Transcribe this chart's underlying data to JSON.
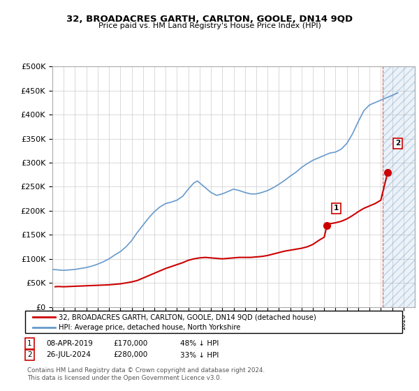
{
  "title": "32, BROADACRES GARTH, CARLTON, GOOLE, DN14 9QD",
  "subtitle": "Price paid vs. HM Land Registry's House Price Index (HPI)",
  "ylabel_ticks": [
    "£0",
    "£50K",
    "£100K",
    "£150K",
    "£200K",
    "£250K",
    "£300K",
    "£350K",
    "£400K",
    "£450K",
    "£500K"
  ],
  "ytick_values": [
    0,
    50000,
    100000,
    150000,
    200000,
    250000,
    300000,
    350000,
    400000,
    450000,
    500000
  ],
  "hpi_color": "#6699cc",
  "price_color": "#cc0000",
  "background_color": "#ffffff",
  "grid_color": "#cccccc",
  "sale1": {
    "date": "08-APR-2019",
    "price": 170000,
    "label": "1",
    "pct": "48% ↓ HPI"
  },
  "sale2": {
    "date": "26-JUL-2024",
    "price": 280000,
    "label": "2",
    "pct": "33% ↓ HPI"
  },
  "legend_line1": "32, BROADACRES GARTH, CARLTON, GOOLE, DN14 9QD (detached house)",
  "legend_line2": "HPI: Average price, detached house, North Yorkshire",
  "footer": "Contains HM Land Registry data © Crown copyright and database right 2024.\nThis data is licensed under the Open Government Licence v3.0.",
  "hpi_data": [
    [
      1995,
      78000
    ],
    [
      1995.5,
      77000
    ],
    [
      1996,
      76000
    ],
    [
      1996.5,
      77000
    ],
    [
      1997,
      78000
    ],
    [
      1997.5,
      80000
    ],
    [
      1998,
      82000
    ],
    [
      1998.5,
      85000
    ],
    [
      1999,
      89000
    ],
    [
      1999.5,
      94000
    ],
    [
      2000,
      100000
    ],
    [
      2000.5,
      108000
    ],
    [
      2001,
      115000
    ],
    [
      2001.5,
      125000
    ],
    [
      2002,
      138000
    ],
    [
      2002.5,
      155000
    ],
    [
      2003,
      170000
    ],
    [
      2003.5,
      185000
    ],
    [
      2004,
      198000
    ],
    [
      2004.5,
      208000
    ],
    [
      2005,
      215000
    ],
    [
      2005.5,
      218000
    ],
    [
      2006,
      222000
    ],
    [
      2006.5,
      230000
    ],
    [
      2007,
      245000
    ],
    [
      2007.5,
      258000
    ],
    [
      2007.8,
      262000
    ],
    [
      2008,
      258000
    ],
    [
      2008.5,
      248000
    ],
    [
      2009,
      238000
    ],
    [
      2009.5,
      232000
    ],
    [
      2010,
      235000
    ],
    [
      2010.5,
      240000
    ],
    [
      2011,
      245000
    ],
    [
      2011.5,
      242000
    ],
    [
      2012,
      238000
    ],
    [
      2012.5,
      235000
    ],
    [
      2013,
      235000
    ],
    [
      2013.5,
      238000
    ],
    [
      2014,
      242000
    ],
    [
      2014.5,
      248000
    ],
    [
      2015,
      255000
    ],
    [
      2015.5,
      263000
    ],
    [
      2016,
      272000
    ],
    [
      2016.5,
      280000
    ],
    [
      2017,
      290000
    ],
    [
      2017.5,
      298000
    ],
    [
      2018,
      305000
    ],
    [
      2018.5,
      310000
    ],
    [
      2019,
      315000
    ],
    [
      2019.5,
      320000
    ],
    [
      2020,
      322000
    ],
    [
      2020.5,
      328000
    ],
    [
      2021,
      340000
    ],
    [
      2021.5,
      360000
    ],
    [
      2022,
      385000
    ],
    [
      2022.5,
      408000
    ],
    [
      2023,
      420000
    ],
    [
      2023.5,
      425000
    ],
    [
      2024,
      430000
    ],
    [
      2024.5,
      435000
    ],
    [
      2025,
      440000
    ],
    [
      2025.5,
      445000
    ]
  ],
  "price_data": [
    [
      1995.25,
      42000
    ],
    [
      1995.5,
      42500
    ],
    [
      1996.0,
      42000
    ],
    [
      1996.5,
      42500
    ],
    [
      1997.0,
      43000
    ],
    [
      1997.5,
      43500
    ],
    [
      1998.0,
      44000
    ],
    [
      1998.5,
      44500
    ],
    [
      1999.0,
      45000
    ],
    [
      1999.5,
      45500
    ],
    [
      2000.0,
      46000
    ],
    [
      2000.5,
      47000
    ],
    [
      2001.0,
      48000
    ],
    [
      2001.5,
      50000
    ],
    [
      2002.0,
      52000
    ],
    [
      2002.5,
      55000
    ],
    [
      2003.0,
      60000
    ],
    [
      2003.5,
      65000
    ],
    [
      2004.0,
      70000
    ],
    [
      2004.5,
      75000
    ],
    [
      2005.0,
      80000
    ],
    [
      2005.5,
      84000
    ],
    [
      2006.0,
      88000
    ],
    [
      2006.5,
      92000
    ],
    [
      2007.0,
      97000
    ],
    [
      2007.5,
      100000
    ],
    [
      2008.0,
      102000
    ],
    [
      2008.5,
      103000
    ],
    [
      2009.0,
      102000
    ],
    [
      2009.5,
      101000
    ],
    [
      2010.0,
      100000
    ],
    [
      2010.5,
      101000
    ],
    [
      2011.0,
      102000
    ],
    [
      2011.5,
      103000
    ],
    [
      2012.0,
      103000
    ],
    [
      2012.5,
      103000
    ],
    [
      2013.0,
      104000
    ],
    [
      2013.5,
      105000
    ],
    [
      2014.0,
      107000
    ],
    [
      2014.5,
      110000
    ],
    [
      2015.0,
      113000
    ],
    [
      2015.5,
      116000
    ],
    [
      2016.0,
      118000
    ],
    [
      2016.5,
      120000
    ],
    [
      2017.0,
      122000
    ],
    [
      2017.5,
      125000
    ],
    [
      2018.0,
      130000
    ],
    [
      2018.5,
      138000
    ],
    [
      2019.0,
      145000
    ],
    [
      2019.25,
      170000
    ],
    [
      2019.5,
      173000
    ],
    [
      2020.0,
      175000
    ],
    [
      2020.5,
      178000
    ],
    [
      2021.0,
      183000
    ],
    [
      2021.5,
      190000
    ],
    [
      2022.0,
      198000
    ],
    [
      2022.5,
      205000
    ],
    [
      2023.0,
      210000
    ],
    [
      2023.5,
      215000
    ],
    [
      2024.0,
      222000
    ],
    [
      2024.5,
      270000
    ],
    [
      2024.58,
      280000
    ]
  ],
  "sale1_x": 2019.25,
  "sale1_y": 170000,
  "sale2_x": 2024.58,
  "sale2_y": 280000,
  "shaded_start": 2024.17,
  "shaded_end": 2027,
  "xlim": [
    1995,
    2027
  ],
  "ylim": [
    0,
    500000
  ]
}
